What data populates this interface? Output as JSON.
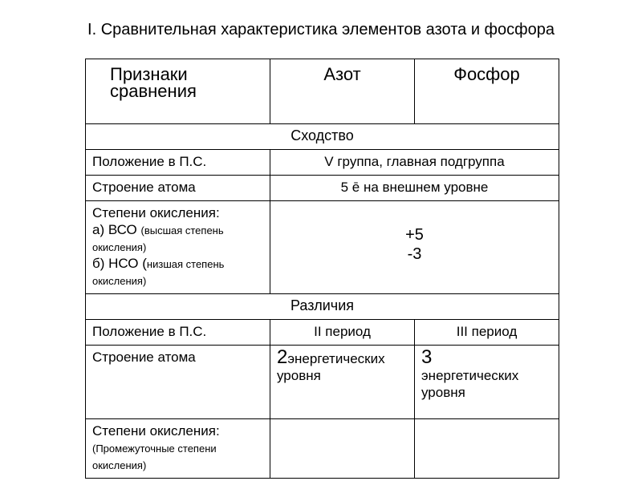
{
  "title": "I.  Сравнительная характеристика элементов азота и фосфора",
  "headers": {
    "c1a": "Признаки",
    "c1b": "сравнения",
    "c2": "Азот",
    "c3": "Фосфор"
  },
  "sections": {
    "similarity": "Сходство",
    "difference": "Различия"
  },
  "rows": {
    "position_label": "Положение в П.С.",
    "position_sim": "V  группа, главная подгруппа",
    "structure_label": "Строение атома",
    "structure_sim": "5 ē на внешнем уровне",
    "oxid_label_main": "Степени окисления:",
    "oxid_a": "а) ВСО",
    "oxid_a_note": "(высшая степень окисления)",
    "oxid_b": "б) НСО (",
    "oxid_b_note": "низшая степень окисления)",
    "oxid_val1": "+5",
    "oxid_val2": "-3",
    "position_diff_n": "II период",
    "position_diff_p": "III период",
    "energy_n_num": "2",
    "energy_n_txt": "энергетических уровня",
    "energy_p_num": "3",
    "energy_p_txt": "энергетических уровня",
    "oxid_diff_label": "Степени окисления:",
    "oxid_diff_note": "(Промежуточные  степени окисления)"
  },
  "style": {
    "border_color": "#000000",
    "bg": "#ffffff",
    "text": "#000000",
    "title_fontsize": 20,
    "header_fontsize": 22,
    "body_fontsize": 17,
    "small_fontsize": 13,
    "big_fontsize": 24
  }
}
